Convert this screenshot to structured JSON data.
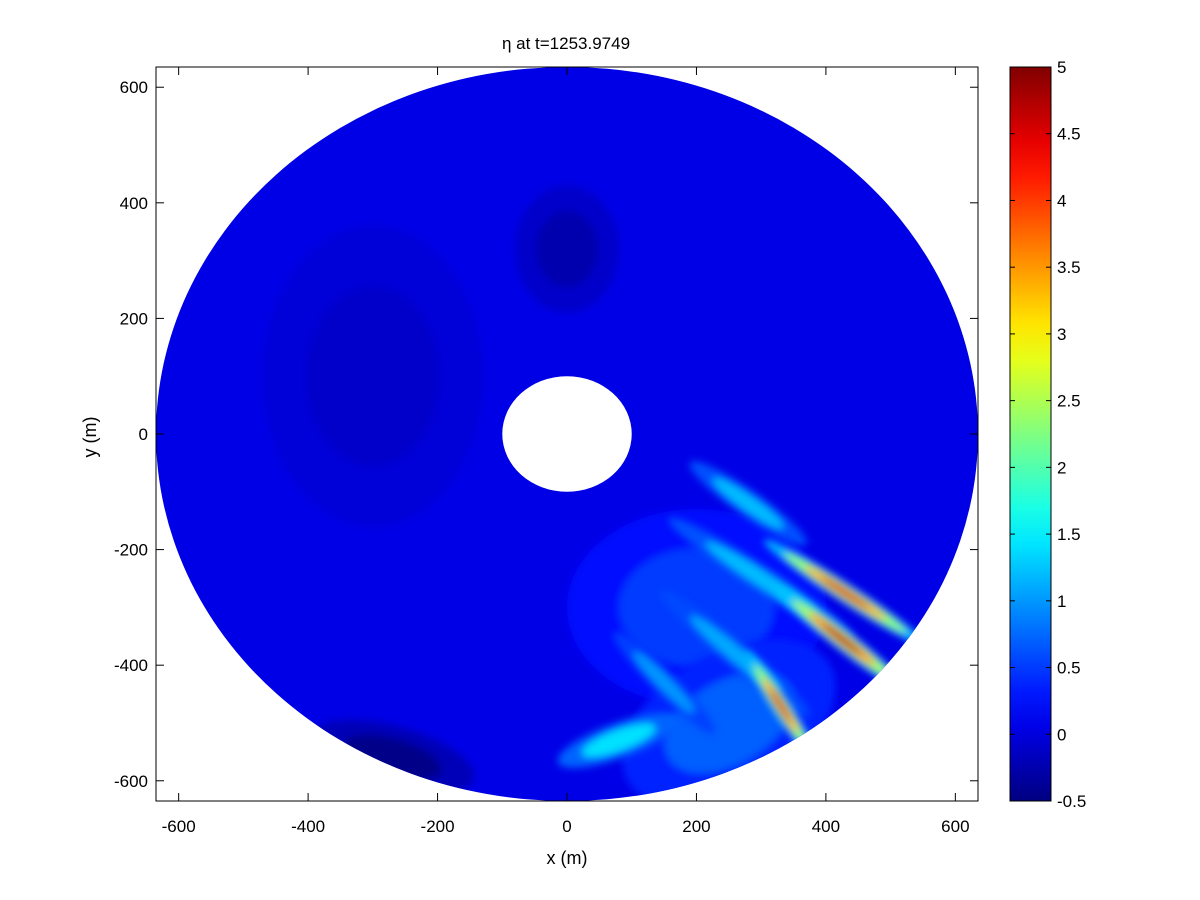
{
  "chart_data": {
    "type": "heatmap",
    "title": "η at t=1253.9749",
    "xlabel": "x (m)",
    "ylabel": "y (m)",
    "xlim": [
      -635,
      635
    ],
    "ylim": [
      -635,
      635
    ],
    "x_ticks": [
      -600,
      -400,
      -200,
      0,
      200,
      400,
      600
    ],
    "x_tick_labels": [
      "-600",
      "-400",
      "-200",
      "0",
      "200",
      "400",
      "600"
    ],
    "y_ticks": [
      600,
      400,
      200,
      0,
      -200,
      -400,
      -600
    ],
    "y_tick_labels": [
      "600",
      "400",
      "200",
      "0",
      "-200",
      "-400",
      "-600"
    ],
    "domain": {
      "shape": "annulus",
      "outer_radius": 635,
      "inner_radius": 100,
      "center": [
        0,
        0
      ]
    },
    "background_eta": 0.05,
    "colorbar": {
      "colormap": "jet",
      "range": [
        -0.5,
        5
      ],
      "ticks": [
        5,
        4.5,
        4,
        3.5,
        3,
        2.5,
        2,
        1.5,
        1,
        0.5,
        0,
        -0.5
      ],
      "tick_labels": [
        "5",
        "4.5",
        "4",
        "3.5",
        "3",
        "2.5",
        "2",
        "1.5",
        "1",
        "0.5",
        "0",
        "-0.5"
      ]
    },
    "features": [
      {
        "kind": "trough",
        "x": 0,
        "y": 320,
        "eta": -0.25,
        "rx": 80,
        "ry": 110,
        "angle": 0
      },
      {
        "kind": "trough",
        "x": -270,
        "y": -560,
        "eta": -0.45,
        "rx": 130,
        "ry": 55,
        "angle": -15
      },
      {
        "kind": "trough",
        "x": -300,
        "y": 100,
        "eta": -0.1,
        "rx": 170,
        "ry": 260,
        "angle": 0
      },
      {
        "kind": "shoal",
        "x": 200,
        "y": -300,
        "eta": 0.5,
        "rx": 200,
        "ry": 170,
        "angle": 0
      },
      {
        "kind": "shoal",
        "x": 250,
        "y": -500,
        "eta": 0.7,
        "rx": 180,
        "ry": 120,
        "angle": 30
      },
      {
        "kind": "crest",
        "x": 280,
        "y": -120,
        "eta": 1.2,
        "rx": 110,
        "ry": 22,
        "angle": -35
      },
      {
        "kind": "crest",
        "x": 80,
        "y": -530,
        "eta": 1.4,
        "rx": 100,
        "ry": 30,
        "angle": 20
      },
      {
        "kind": "crest",
        "x": 300,
        "y": -250,
        "eta": 1.2,
        "rx": 170,
        "ry": 22,
        "angle": -33
      },
      {
        "kind": "crest",
        "x": 260,
        "y": -380,
        "eta": 1.1,
        "rx": 150,
        "ry": 22,
        "angle": -40
      },
      {
        "kind": "crest",
        "x": 430,
        "y": -275,
        "eta": 4.6,
        "rx": 150,
        "ry": 16,
        "angle": -33
      },
      {
        "kind": "crest",
        "x": 425,
        "y": -355,
        "eta": 4.8,
        "rx": 130,
        "ry": 17,
        "angle": -38
      },
      {
        "kind": "crest",
        "x": 330,
        "y": -470,
        "eta": 4.6,
        "rx": 100,
        "ry": 15,
        "angle": -57
      },
      {
        "kind": "crest",
        "x": 150,
        "y": -430,
        "eta": 1.0,
        "rx": 110,
        "ry": 20,
        "angle": -45
      }
    ]
  }
}
